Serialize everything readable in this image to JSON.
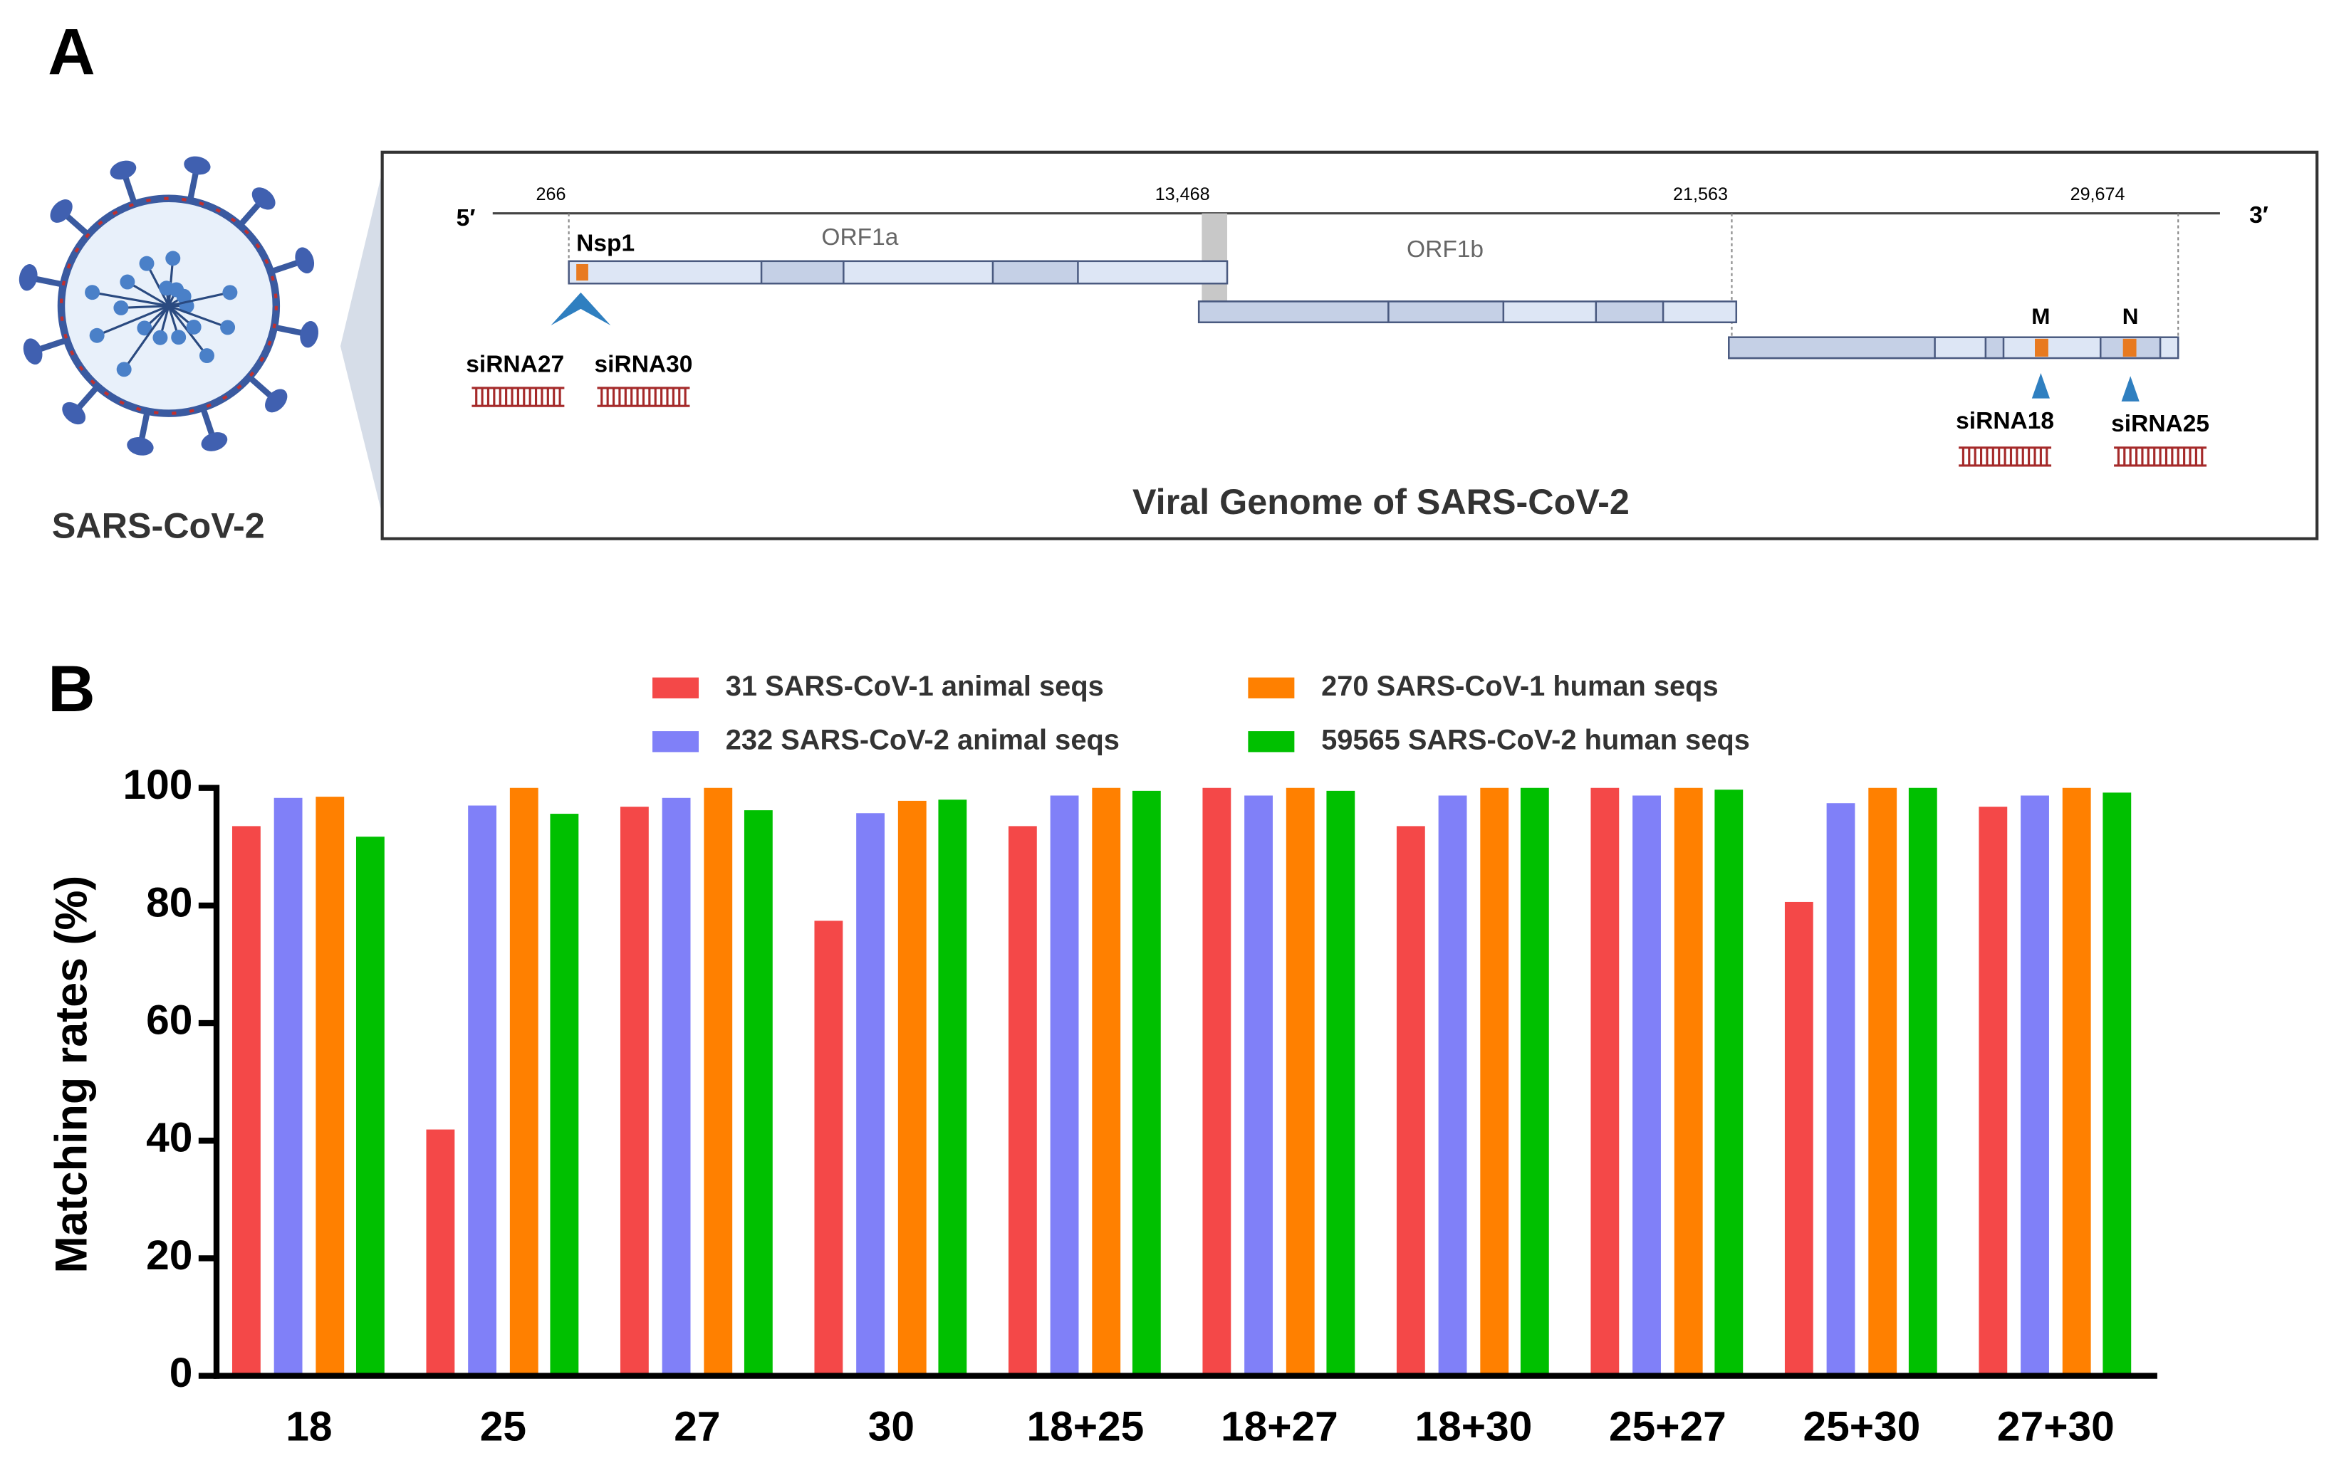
{
  "panel_a": {
    "label": "A",
    "virus_label": "SARS-CoV-2",
    "five_prime": "5′",
    "three_prime": "3′",
    "positions": [
      "266",
      "13,468",
      "21,563",
      "29,674"
    ],
    "genes": [
      "Nsp1",
      "ORF1a",
      "ORF1b",
      "M",
      "N"
    ],
    "sirnas": [
      "siRNA27",
      "siRNA30",
      "siRNA18",
      "siRNA25"
    ],
    "title": "Viral Genome of SARS-CoV-2"
  },
  "panel_b": {
    "label": "B"
  },
  "chart_data": {
    "type": "bar",
    "ylabel": "Matching rates (%)",
    "categories": [
      "18",
      "25",
      "27",
      "30",
      "18+25",
      "18+27",
      "18+30",
      "25+27",
      "25+30",
      "27+30"
    ],
    "series": [
      {
        "name": "31 SARS-CoV-1 animal seqs",
        "color": "#f44848",
        "values": [
          93.5,
          41.9,
          96.8,
          77.4,
          93.5,
          100,
          93.5,
          100,
          80.6,
          96.8
        ]
      },
      {
        "name": "232 SARS-CoV-2 animal seqs",
        "color": "#8080f8",
        "values": [
          98.3,
          97.0,
          98.3,
          95.7,
          98.7,
          98.7,
          98.7,
          98.7,
          97.4,
          98.7
        ]
      },
      {
        "name": "270 SARS-CoV-1 human seqs",
        "color": "#ff8000",
        "values": [
          98.5,
          100,
          100,
          97.8,
          100,
          100,
          100,
          100,
          100,
          100
        ]
      },
      {
        "name": "59565 SARS-CoV-2 human seqs",
        "color": "#00c000",
        "values": [
          91.7,
          95.6,
          96.2,
          98.0,
          99.5,
          99.5,
          100,
          99.7,
          100,
          99.2
        ]
      }
    ],
    "ylim": [
      0,
      100
    ],
    "yticks": [
      0,
      20,
      40,
      60,
      80,
      100
    ]
  }
}
